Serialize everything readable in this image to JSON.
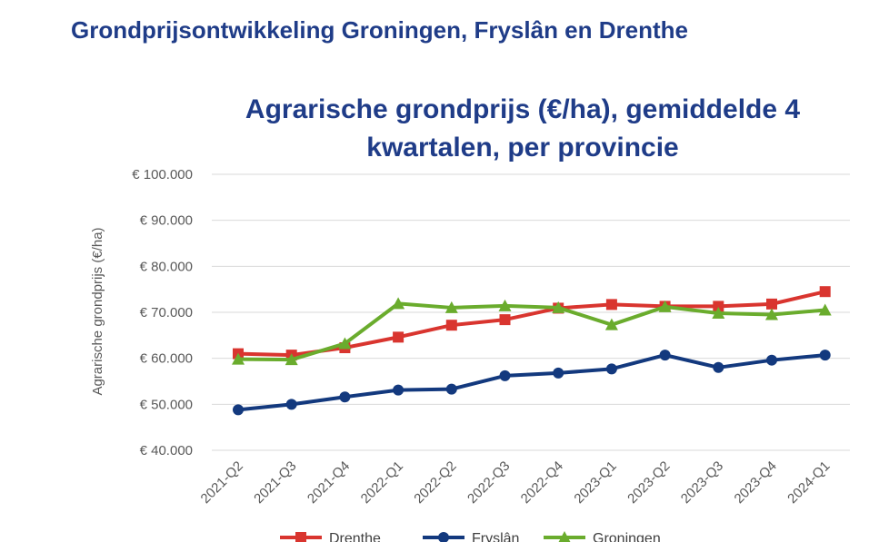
{
  "page": {
    "heading": "Grondprijsontwikkeling Groningen, Fryslân en Drenthe"
  },
  "chart_data": {
    "type": "line",
    "title_line1": "Agrarische grondprijs (€/ha), gemiddelde 4",
    "title_line2": "kwartalen, per provincie",
    "xlabel": "",
    "ylabel": "Agrarische grondprijs (€/ha)",
    "categories": [
      "2021-Q2",
      "2021-Q3",
      "2021-Q4",
      "2022-Q1",
      "2022-Q2",
      "2022-Q3",
      "2022-Q4",
      "2023-Q1",
      "2023-Q2",
      "2023-Q3",
      "2023-Q4",
      "2024-Q1"
    ],
    "ylim": [
      40000,
      100000
    ],
    "yticks": [
      40000,
      50000,
      60000,
      70000,
      80000,
      90000,
      100000
    ],
    "ytick_labels": [
      "€ 40.000",
      "€ 50.000",
      "€ 60.000",
      "€ 70.000",
      "€ 80.000",
      "€ 90.000",
      "€ 100.000"
    ],
    "grid": true,
    "legend_position": "bottom",
    "series": [
      {
        "name": "Drenthe",
        "color": "#d9352f",
        "marker": "square",
        "values": [
          61000,
          60700,
          62300,
          64600,
          67200,
          68400,
          70900,
          71700,
          71300,
          71300,
          71800,
          74500
        ]
      },
      {
        "name": "Fryslân",
        "color": "#13397e",
        "marker": "circle",
        "values": [
          48800,
          50000,
          51600,
          53100,
          53300,
          56200,
          56800,
          57700,
          60700,
          58000,
          59600,
          60700
        ]
      },
      {
        "name": "Groningen",
        "color": "#6aac2d",
        "marker": "triangle",
        "values": [
          59800,
          59700,
          63200,
          71900,
          71000,
          71400,
          71000,
          67300,
          71200,
          69800,
          69500,
          70500
        ]
      }
    ]
  }
}
